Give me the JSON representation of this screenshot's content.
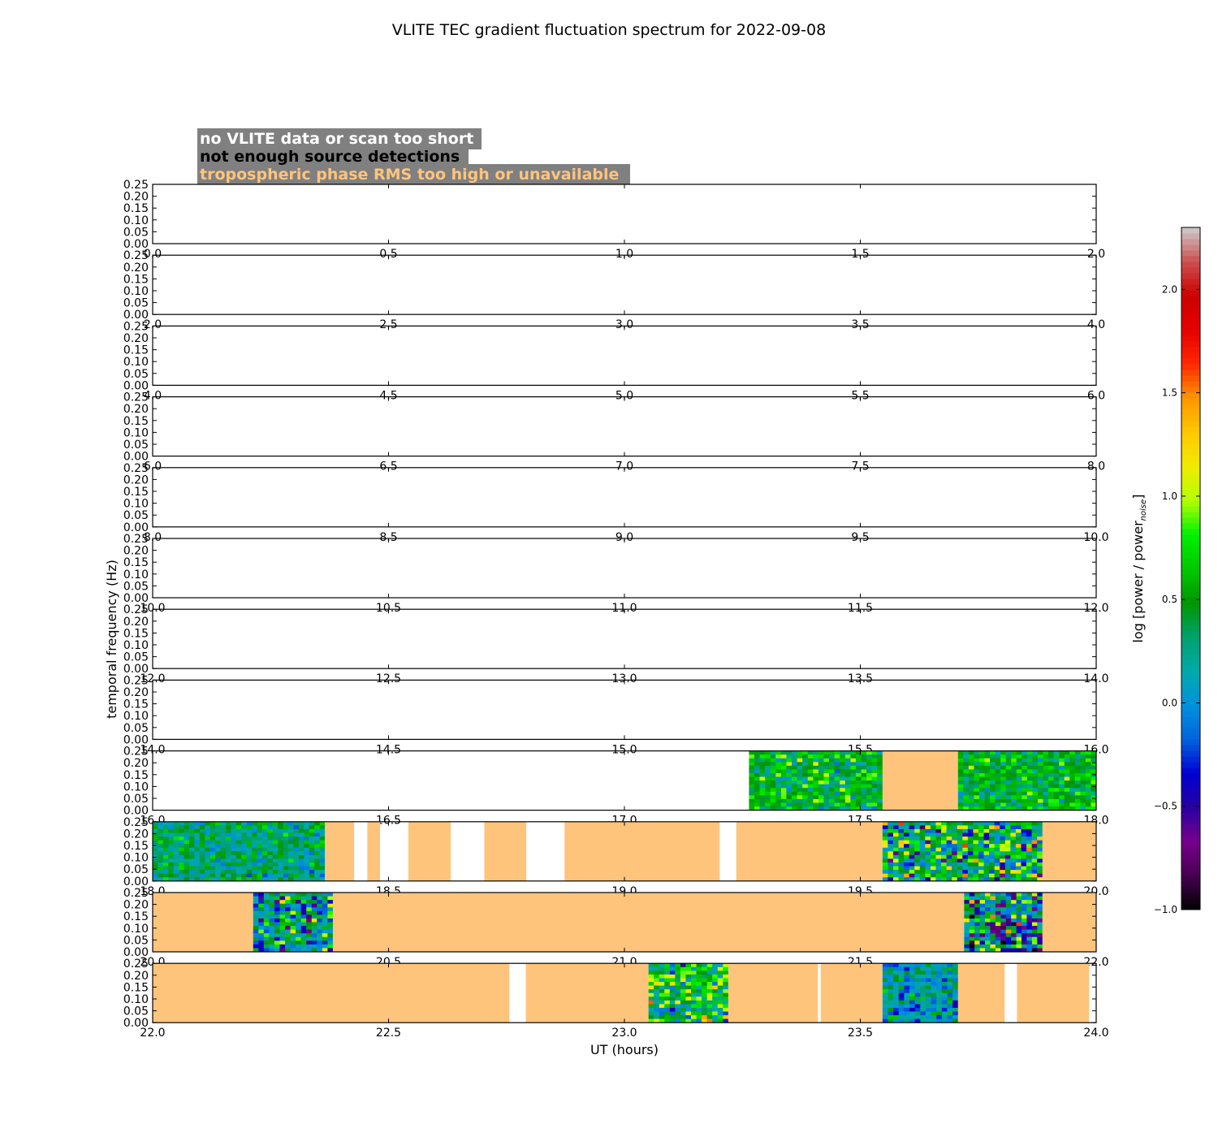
{
  "chart_data": {
    "type": "heatmap",
    "title": "VLITE TEC gradient fluctuation spectrum for 2022-09-08",
    "xlabel": "UT (hours)",
    "ylabel": "temporal frequency (Hz)",
    "ylim": [
      0,
      0.25
    ],
    "ytick_labels": [
      "0.00",
      "0.05",
      "0.10",
      "0.15",
      "0.20",
      "0.25"
    ],
    "colorbar": {
      "label": "log [power / power",
      "label_subscript": "noise",
      "label_close": "]",
      "range": [
        -1.0,
        2.3
      ],
      "tick_labels": [
        "2.0",
        "1.5",
        "1.0",
        "0.5",
        "0.0",
        "−0.5",
        "−1.0"
      ],
      "tick_values": [
        2.0,
        1.5,
        1.0,
        0.5,
        0.0,
        -0.5,
        -1.0
      ]
    },
    "legend": [
      {
        "text": "no VLITE data or scan too short",
        "color": "#ffffff"
      },
      {
        "text": "not enough source detections",
        "color": "#000000"
      },
      {
        "text": "tropospheric phase RMS too high or unavailable",
        "color": "#ffc47c"
      }
    ],
    "panels": [
      {
        "range": [
          0,
          2
        ],
        "ticks": [
          "0.0",
          "0.5",
          "1.0",
          "1.5",
          "2.0"
        ],
        "segments": []
      },
      {
        "range": [
          2,
          4
        ],
        "ticks": [
          "2.0",
          "2.5",
          "3.0",
          "3.5",
          "4.0"
        ],
        "segments": []
      },
      {
        "range": [
          4,
          6
        ],
        "ticks": [
          "4.0",
          "4.5",
          "5.0",
          "5.5",
          "6.0"
        ],
        "segments": []
      },
      {
        "range": [
          6,
          8
        ],
        "ticks": [
          "6.0",
          "6.5",
          "7.0",
          "7.5",
          "8.0"
        ],
        "segments": []
      },
      {
        "range": [
          8,
          10
        ],
        "ticks": [
          "8.0",
          "8.5",
          "9.0",
          "9.5",
          "10.0"
        ],
        "segments": []
      },
      {
        "range": [
          10,
          12
        ],
        "ticks": [
          "10.0",
          "10.5",
          "11.0",
          "11.5",
          "12.0"
        ],
        "segments": []
      },
      {
        "range": [
          12,
          14
        ],
        "ticks": [
          "12.0",
          "12.5",
          "13.0",
          "13.5",
          "14.0"
        ],
        "segments": []
      },
      {
        "range": [
          14,
          16
        ],
        "ticks": [
          "14.0",
          "14.5",
          "15.0",
          "15.5",
          "16.0"
        ],
        "segments": []
      },
      {
        "range": [
          16,
          18
        ],
        "ticks": [
          "16.0",
          "16.5",
          "17.0",
          "17.5",
          "18.0"
        ],
        "segments": [
          {
            "start": 17.264,
            "end": 17.547,
            "kind": "spectrum",
            "mean": 0.5,
            "spread": 0.35
          },
          {
            "start": 17.547,
            "end": 17.707,
            "kind": "tropo"
          },
          {
            "start": 17.707,
            "end": 18.0,
            "kind": "spectrum",
            "mean": 0.5,
            "spread": 0.3
          }
        ]
      },
      {
        "range": [
          18,
          20
        ],
        "ticks": [
          "18.0",
          "18.5",
          "19.0",
          "19.5",
          "20.0"
        ],
        "segments": [
          {
            "start": 18.0,
            "end": 18.365,
            "kind": "spectrum",
            "mean": 0.3,
            "spread": 0.3
          },
          {
            "start": 18.365,
            "end": 18.427,
            "kind": "tropo"
          },
          {
            "start": 18.455,
            "end": 18.482,
            "kind": "tropo"
          },
          {
            "start": 18.542,
            "end": 18.632,
            "kind": "tropo"
          },
          {
            "start": 18.703,
            "end": 18.792,
            "kind": "tropo"
          },
          {
            "start": 18.873,
            "end": 19.202,
            "kind": "tropo"
          },
          {
            "start": 19.237,
            "end": 19.547,
            "kind": "tropo"
          },
          {
            "start": 19.547,
            "end": 19.886,
            "kind": "spectrum",
            "mean": 0.4,
            "spread": 0.7
          },
          {
            "start": 19.886,
            "end": 20.0,
            "kind": "tropo"
          }
        ]
      },
      {
        "range": [
          20,
          22
        ],
        "ticks": [
          "20.0",
          "20.5",
          "21.0",
          "21.5",
          "22.0"
        ],
        "segments": [
          {
            "start": 20.0,
            "end": 20.213,
            "kind": "tropo"
          },
          {
            "start": 20.213,
            "end": 20.382,
            "kind": "spectrum",
            "mean": 0.2,
            "spread": 0.6
          },
          {
            "start": 20.382,
            "end": 21.72,
            "kind": "tropo"
          },
          {
            "start": 21.72,
            "end": 21.886,
            "kind": "spectrum",
            "mean": 0.2,
            "spread": 0.8
          },
          {
            "start": 21.886,
            "end": 22.0,
            "kind": "tropo"
          }
        ]
      },
      {
        "range": [
          22,
          24
        ],
        "ticks": [
          "22.0",
          "22.5",
          "23.0",
          "23.5",
          "24.0"
        ],
        "segments": [
          {
            "start": 22.0,
            "end": 22.756,
            "kind": "tropo"
          },
          {
            "start": 22.791,
            "end": 23.051,
            "kind": "tropo"
          },
          {
            "start": 23.051,
            "end": 23.22,
            "kind": "spectrum",
            "mean": 0.5,
            "spread": 0.6
          },
          {
            "start": 23.22,
            "end": 23.41,
            "kind": "tropo"
          },
          {
            "start": 23.416,
            "end": 23.547,
            "kind": "tropo"
          },
          {
            "start": 23.547,
            "end": 23.707,
            "kind": "spectrum",
            "mean": 0.1,
            "spread": 0.35
          },
          {
            "start": 23.707,
            "end": 23.806,
            "kind": "tropo"
          },
          {
            "start": 23.832,
            "end": 23.985,
            "kind": "tropo"
          }
        ]
      }
    ]
  }
}
